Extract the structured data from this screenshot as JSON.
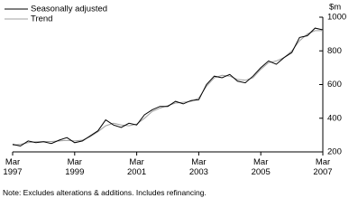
{
  "chart_data": {
    "type": "line",
    "legend_position": "upper left",
    "y_unit_label": "$m",
    "note": "Note: Excludes alterations & additions. Includes refinancing.",
    "categories": [
      "Mar 1997",
      null,
      null,
      null,
      null,
      null,
      null,
      null,
      "Mar 1999",
      null,
      null,
      null,
      null,
      null,
      null,
      null,
      "Mar 2001",
      null,
      null,
      null,
      null,
      null,
      null,
      null,
      "Mar 2003",
      null,
      null,
      null,
      null,
      null,
      null,
      null,
      "Mar 2005",
      null,
      null,
      null,
      null,
      null,
      null,
      null,
      "Mar 2007"
    ],
    "series": [
      {
        "name": "Seasonally adjusted",
        "color": "#000000",
        "values": [
          245,
          235,
          265,
          255,
          260,
          250,
          270,
          285,
          255,
          265,
          295,
          325,
          390,
          360,
          345,
          370,
          360,
          420,
          450,
          470,
          470,
          500,
          485,
          505,
          510,
          600,
          650,
          640,
          660,
          620,
          610,
          650,
          700,
          740,
          720,
          760,
          790,
          880,
          890,
          935,
          925
        ]
      },
      {
        "name": "Trend",
        "color": "#a0a0a0",
        "values": [
          240,
          245,
          255,
          260,
          262,
          262,
          265,
          268,
          265,
          270,
          290,
          320,
          355,
          370,
          360,
          355,
          365,
          400,
          440,
          460,
          475,
          490,
          495,
          500,
          520,
          590,
          640,
          655,
          650,
          630,
          625,
          640,
          690,
          730,
          740,
          760,
          800,
          860,
          900,
          920,
          920
        ]
      }
    ],
    "ylim": [
      200,
      1000
    ],
    "yticks": [
      200,
      400,
      600,
      800,
      1000
    ]
  }
}
